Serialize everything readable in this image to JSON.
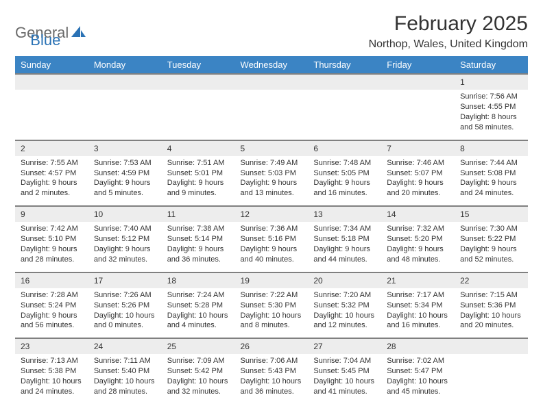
{
  "logo": {
    "text1": "General",
    "text2": "Blue"
  },
  "title": "February 2025",
  "location": "Northop, Wales, United Kingdom",
  "colors": {
    "header_bg": "#3b84c4",
    "header_text": "#ffffff",
    "daynum_bg": "#ededed",
    "border": "#808080",
    "text": "#333333",
    "logo_gray": "#6a6a6a",
    "logo_blue": "#2a72b5"
  },
  "weekdays": [
    "Sunday",
    "Monday",
    "Tuesday",
    "Wednesday",
    "Thursday",
    "Friday",
    "Saturday"
  ],
  "weeks": [
    {
      "nums": [
        "",
        "",
        "",
        "",
        "",
        "",
        "1"
      ],
      "cells": [
        null,
        null,
        null,
        null,
        null,
        null,
        {
          "sunrise": "Sunrise: 7:56 AM",
          "sunset": "Sunset: 4:55 PM",
          "daylight": "Daylight: 8 hours and 58 minutes."
        }
      ]
    },
    {
      "nums": [
        "2",
        "3",
        "4",
        "5",
        "6",
        "7",
        "8"
      ],
      "cells": [
        {
          "sunrise": "Sunrise: 7:55 AM",
          "sunset": "Sunset: 4:57 PM",
          "daylight": "Daylight: 9 hours and 2 minutes."
        },
        {
          "sunrise": "Sunrise: 7:53 AM",
          "sunset": "Sunset: 4:59 PM",
          "daylight": "Daylight: 9 hours and 5 minutes."
        },
        {
          "sunrise": "Sunrise: 7:51 AM",
          "sunset": "Sunset: 5:01 PM",
          "daylight": "Daylight: 9 hours and 9 minutes."
        },
        {
          "sunrise": "Sunrise: 7:49 AM",
          "sunset": "Sunset: 5:03 PM",
          "daylight": "Daylight: 9 hours and 13 minutes."
        },
        {
          "sunrise": "Sunrise: 7:48 AM",
          "sunset": "Sunset: 5:05 PM",
          "daylight": "Daylight: 9 hours and 16 minutes."
        },
        {
          "sunrise": "Sunrise: 7:46 AM",
          "sunset": "Sunset: 5:07 PM",
          "daylight": "Daylight: 9 hours and 20 minutes."
        },
        {
          "sunrise": "Sunrise: 7:44 AM",
          "sunset": "Sunset: 5:08 PM",
          "daylight": "Daylight: 9 hours and 24 minutes."
        }
      ]
    },
    {
      "nums": [
        "9",
        "10",
        "11",
        "12",
        "13",
        "14",
        "15"
      ],
      "cells": [
        {
          "sunrise": "Sunrise: 7:42 AM",
          "sunset": "Sunset: 5:10 PM",
          "daylight": "Daylight: 9 hours and 28 minutes."
        },
        {
          "sunrise": "Sunrise: 7:40 AM",
          "sunset": "Sunset: 5:12 PM",
          "daylight": "Daylight: 9 hours and 32 minutes."
        },
        {
          "sunrise": "Sunrise: 7:38 AM",
          "sunset": "Sunset: 5:14 PM",
          "daylight": "Daylight: 9 hours and 36 minutes."
        },
        {
          "sunrise": "Sunrise: 7:36 AM",
          "sunset": "Sunset: 5:16 PM",
          "daylight": "Daylight: 9 hours and 40 minutes."
        },
        {
          "sunrise": "Sunrise: 7:34 AM",
          "sunset": "Sunset: 5:18 PM",
          "daylight": "Daylight: 9 hours and 44 minutes."
        },
        {
          "sunrise": "Sunrise: 7:32 AM",
          "sunset": "Sunset: 5:20 PM",
          "daylight": "Daylight: 9 hours and 48 minutes."
        },
        {
          "sunrise": "Sunrise: 7:30 AM",
          "sunset": "Sunset: 5:22 PM",
          "daylight": "Daylight: 9 hours and 52 minutes."
        }
      ]
    },
    {
      "nums": [
        "16",
        "17",
        "18",
        "19",
        "20",
        "21",
        "22"
      ],
      "cells": [
        {
          "sunrise": "Sunrise: 7:28 AM",
          "sunset": "Sunset: 5:24 PM",
          "daylight": "Daylight: 9 hours and 56 minutes."
        },
        {
          "sunrise": "Sunrise: 7:26 AM",
          "sunset": "Sunset: 5:26 PM",
          "daylight": "Daylight: 10 hours and 0 minutes."
        },
        {
          "sunrise": "Sunrise: 7:24 AM",
          "sunset": "Sunset: 5:28 PM",
          "daylight": "Daylight: 10 hours and 4 minutes."
        },
        {
          "sunrise": "Sunrise: 7:22 AM",
          "sunset": "Sunset: 5:30 PM",
          "daylight": "Daylight: 10 hours and 8 minutes."
        },
        {
          "sunrise": "Sunrise: 7:20 AM",
          "sunset": "Sunset: 5:32 PM",
          "daylight": "Daylight: 10 hours and 12 minutes."
        },
        {
          "sunrise": "Sunrise: 7:17 AM",
          "sunset": "Sunset: 5:34 PM",
          "daylight": "Daylight: 10 hours and 16 minutes."
        },
        {
          "sunrise": "Sunrise: 7:15 AM",
          "sunset": "Sunset: 5:36 PM",
          "daylight": "Daylight: 10 hours and 20 minutes."
        }
      ]
    },
    {
      "nums": [
        "23",
        "24",
        "25",
        "26",
        "27",
        "28",
        ""
      ],
      "cells": [
        {
          "sunrise": "Sunrise: 7:13 AM",
          "sunset": "Sunset: 5:38 PM",
          "daylight": "Daylight: 10 hours and 24 minutes."
        },
        {
          "sunrise": "Sunrise: 7:11 AM",
          "sunset": "Sunset: 5:40 PM",
          "daylight": "Daylight: 10 hours and 28 minutes."
        },
        {
          "sunrise": "Sunrise: 7:09 AM",
          "sunset": "Sunset: 5:42 PM",
          "daylight": "Daylight: 10 hours and 32 minutes."
        },
        {
          "sunrise": "Sunrise: 7:06 AM",
          "sunset": "Sunset: 5:43 PM",
          "daylight": "Daylight: 10 hours and 36 minutes."
        },
        {
          "sunrise": "Sunrise: 7:04 AM",
          "sunset": "Sunset: 5:45 PM",
          "daylight": "Daylight: 10 hours and 41 minutes."
        },
        {
          "sunrise": "Sunrise: 7:02 AM",
          "sunset": "Sunset: 5:47 PM",
          "daylight": "Daylight: 10 hours and 45 minutes."
        },
        null
      ]
    }
  ]
}
